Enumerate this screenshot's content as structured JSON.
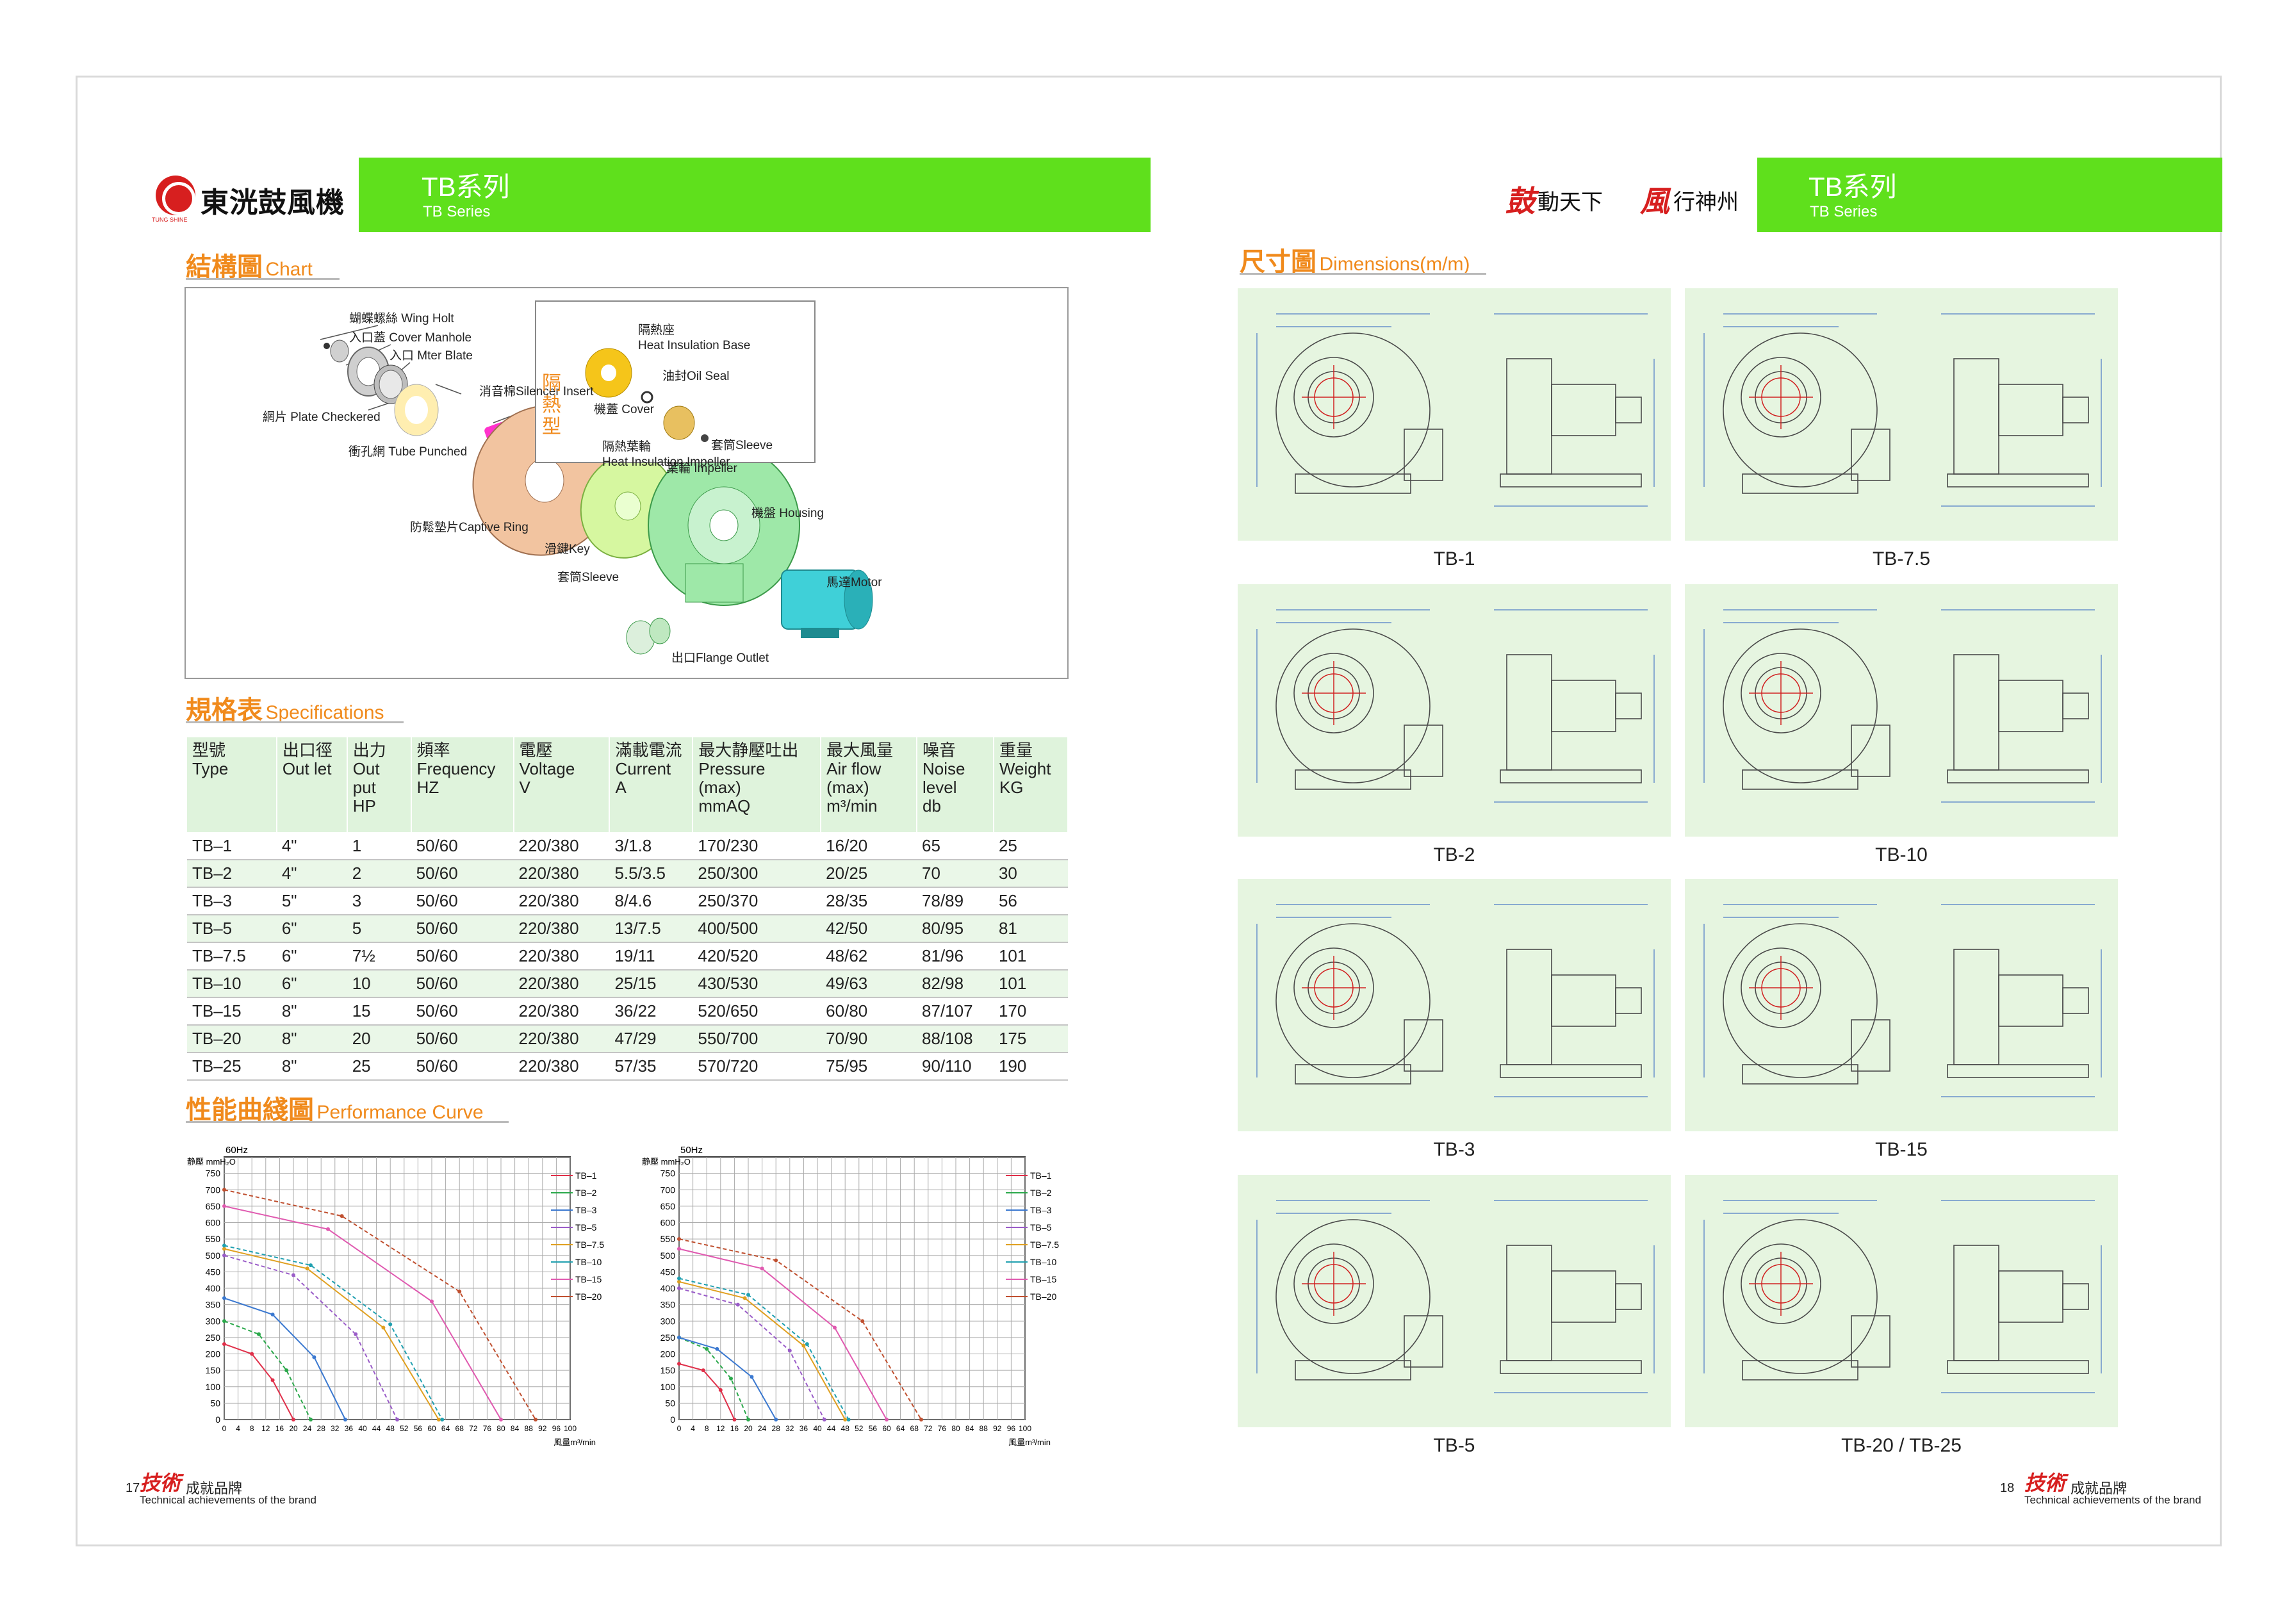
{
  "brand": {
    "name": "東洸鼓風機",
    "sub": "TUNG SHINE"
  },
  "left_band": {
    "title": "TB系列",
    "subtitle": "TB Series"
  },
  "right_band": {
    "title": "TB系列",
    "subtitle": "TB Series"
  },
  "slogan": {
    "a_script": "鼓",
    "a": "動天下",
    "b_script": "風",
    "b": "行神州"
  },
  "sections": {
    "chart": {
      "cn": "結構圖",
      "en": "Chart"
    },
    "specs": {
      "cn": "規格表",
      "en": "Specifications"
    },
    "curve": {
      "cn": "性能曲綫圖",
      "en": "Performance Curve"
    },
    "dims": {
      "cn": "尺寸圖",
      "en": "Dimensions(m/m)"
    }
  },
  "parts": [
    "蝴蝶螺絲 Wing Holt",
    "入口蓋 Cover Manhole",
    "入口 Mter Blate",
    "網片 Plate Checkered",
    "消音棉Silencer Insert",
    "衝孔網 Tube Punched",
    "機蓋 Cover",
    "葉輪 Impeller",
    "防鬆墊片Captive Ring",
    "機盤 Housing",
    "滑鍵Key",
    "套筒Sleeve",
    "馬達Motor",
    "出口Flange Outlet"
  ],
  "inset": {
    "title": "隔熱型",
    "parts": [
      "隔熱座\nHeat Insulation Base",
      "油封Oil Seal",
      "隔熱葉輪\nHeat Insulation Impeller",
      "套筒Sleeve"
    ]
  },
  "spec_headers": [
    "型號\nType",
    "出口徑\nOut let",
    "出力\nOut put\nHP",
    "頻率\nFrequency\nHZ",
    "電壓\nVoltage\nV",
    "滿載電流\nCurrent\nA",
    "最大静壓吐出\nPressure\n(max)\nmmAQ",
    "最大風量\nAir flow\n(max)\nm³/min",
    "噪音\nNoise\nlevel\ndb",
    "重量\nWeight\nKG"
  ],
  "spec_rows": [
    [
      "TB–1",
      "4\"",
      "1",
      "50/60",
      "220/380",
      "3/1.8",
      "170/230",
      "16/20",
      "65",
      "25"
    ],
    [
      "TB–2",
      "4\"",
      "2",
      "50/60",
      "220/380",
      "5.5/3.5",
      "250/300",
      "20/25",
      "70",
      "30"
    ],
    [
      "TB–3",
      "5\"",
      "3",
      "50/60",
      "220/380",
      "8/4.6",
      "250/370",
      "28/35",
      "78/89",
      "56"
    ],
    [
      "TB–5",
      "6\"",
      "5",
      "50/60",
      "220/380",
      "13/7.5",
      "400/500",
      "42/50",
      "80/95",
      "81"
    ],
    [
      "TB–7.5",
      "6\"",
      "7½",
      "50/60",
      "220/380",
      "19/11",
      "420/520",
      "48/62",
      "81/96",
      "101"
    ],
    [
      "TB–10",
      "6\"",
      "10",
      "50/60",
      "220/380",
      "25/15",
      "430/530",
      "49/63",
      "82/98",
      "101"
    ],
    [
      "TB–15",
      "8\"",
      "15",
      "50/60",
      "220/380",
      "36/22",
      "520/650",
      "60/80",
      "87/107",
      "170"
    ],
    [
      "TB–20",
      "8\"",
      "20",
      "50/60",
      "220/380",
      "47/29",
      "550/700",
      "70/90",
      "88/108",
      "175"
    ],
    [
      "TB–25",
      "8\"",
      "25",
      "50/60",
      "220/380",
      "57/35",
      "570/720",
      "75/95",
      "90/110",
      "190"
    ]
  ],
  "chart_data": [
    {
      "type": "line",
      "title": "60Hz",
      "ylabel": "静壓 mmH₂O",
      "xlabel": "風量m³/min",
      "ylim": [
        0,
        800
      ],
      "xlim": [
        0,
        100
      ],
      "yticks": [
        0,
        50,
        100,
        150,
        200,
        250,
        300,
        350,
        400,
        450,
        500,
        550,
        600,
        650,
        700,
        750
      ],
      "xticks": [
        0,
        4,
        8,
        12,
        16,
        20,
        24,
        28,
        32,
        36,
        40,
        44,
        48,
        52,
        56,
        60,
        64,
        68,
        72,
        76,
        80,
        84,
        88,
        92,
        96,
        100
      ],
      "series": [
        {
          "name": "TB–1",
          "x": [
            0,
            8,
            14,
            20
          ],
          "y": [
            230,
            200,
            120,
            0
          ]
        },
        {
          "name": "TB–2",
          "x": [
            0,
            10,
            18,
            25
          ],
          "y": [
            300,
            260,
            150,
            0
          ]
        },
        {
          "name": "TB–3",
          "x": [
            0,
            14,
            26,
            35
          ],
          "y": [
            370,
            320,
            190,
            0
          ]
        },
        {
          "name": "TB–5",
          "x": [
            0,
            20,
            38,
            50
          ],
          "y": [
            500,
            440,
            260,
            0
          ]
        },
        {
          "name": "TB–7.5",
          "x": [
            0,
            24,
            46,
            62
          ],
          "y": [
            520,
            460,
            280,
            0
          ]
        },
        {
          "name": "TB–10",
          "x": [
            0,
            25,
            48,
            63
          ],
          "y": [
            530,
            470,
            290,
            0
          ]
        },
        {
          "name": "TB–15",
          "x": [
            0,
            30,
            60,
            80
          ],
          "y": [
            650,
            580,
            360,
            0
          ]
        },
        {
          "name": "TB–20",
          "x": [
            0,
            34,
            68,
            90
          ],
          "y": [
            700,
            620,
            390,
            0
          ]
        }
      ]
    },
    {
      "type": "line",
      "title": "50Hz",
      "ylabel": "静壓 mmH₂O",
      "xlabel": "風量m³/min",
      "ylim": [
        0,
        800
      ],
      "xlim": [
        0,
        100
      ],
      "yticks": [
        0,
        50,
        100,
        150,
        200,
        250,
        300,
        350,
        400,
        450,
        500,
        550,
        600,
        650,
        700,
        750
      ],
      "xticks": [
        0,
        4,
        8,
        12,
        16,
        20,
        24,
        28,
        32,
        36,
        40,
        44,
        48,
        52,
        56,
        60,
        64,
        68,
        72,
        76,
        80,
        84,
        88,
        92,
        96,
        100
      ],
      "series": [
        {
          "name": "TB–1",
          "x": [
            0,
            7,
            12,
            16
          ],
          "y": [
            170,
            150,
            90,
            0
          ]
        },
        {
          "name": "TB–2",
          "x": [
            0,
            8,
            15,
            20
          ],
          "y": [
            250,
            215,
            125,
            0
          ]
        },
        {
          "name": "TB–3",
          "x": [
            0,
            11,
            21,
            28
          ],
          "y": [
            250,
            215,
            130,
            0
          ]
        },
        {
          "name": "TB–5",
          "x": [
            0,
            17,
            32,
            42
          ],
          "y": [
            400,
            350,
            210,
            0
          ]
        },
        {
          "name": "TB–7.5",
          "x": [
            0,
            19,
            36,
            48
          ],
          "y": [
            420,
            370,
            225,
            0
          ]
        },
        {
          "name": "TB–10",
          "x": [
            0,
            20,
            37,
            49
          ],
          "y": [
            430,
            380,
            230,
            0
          ]
        },
        {
          "name": "TB–15",
          "x": [
            0,
            24,
            45,
            60
          ],
          "y": [
            520,
            460,
            280,
            0
          ]
        },
        {
          "name": "TB–20",
          "x": [
            0,
            28,
            53,
            70
          ],
          "y": [
            550,
            485,
            300,
            0
          ]
        }
      ]
    }
  ],
  "series_colors": [
    "#e0304a",
    "#2aa84a",
    "#3a78d0",
    "#9a5cc8",
    "#e0a020",
    "#20a0b0",
    "#e05ab0",
    "#c05030"
  ],
  "dims": [
    {
      "caption": "TB-1"
    },
    {
      "caption": "TB-7.5"
    },
    {
      "caption": "TB-2"
    },
    {
      "caption": "TB-10"
    },
    {
      "caption": "TB-3"
    },
    {
      "caption": "TB-15"
    },
    {
      "caption": "TB-5"
    },
    {
      "caption": "TB-20 / TB-25"
    }
  ],
  "footer": {
    "left_page": "17",
    "right_page": "18",
    "script": "技術",
    "cn": "成就品牌",
    "en": "Technical achievements of the brand"
  }
}
